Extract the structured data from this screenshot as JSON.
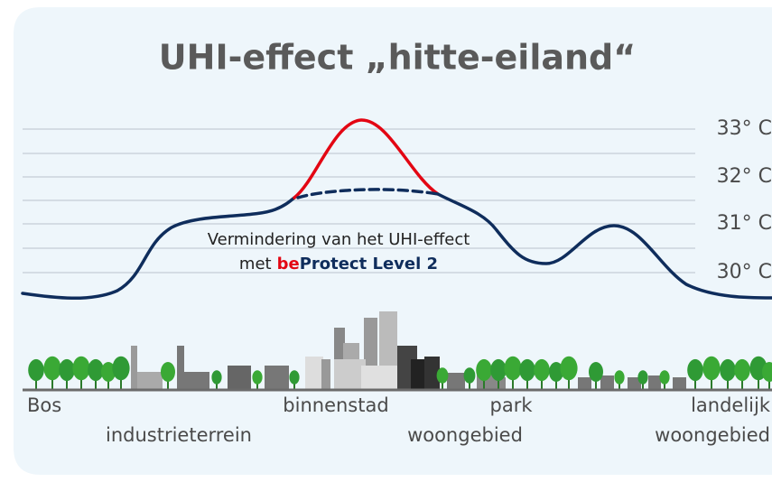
{
  "header": {
    "title": "UHI-effect „hitte-eiland“"
  },
  "temperature_labels": [
    "33° C",
    "32° C",
    "31° C",
    "30° C"
  ],
  "annotation": {
    "line1": "Vermindering van het UHI-effect",
    "line2_prefix": "met",
    "brand_be": "be",
    "brand_rest": "Protect Level 2"
  },
  "areas": {
    "bos": "Bos",
    "industrie": "industrieterrein",
    "binnenstad": "binnenstad",
    "park": "park",
    "woongebied": "woongebied",
    "landelijk_1": "landelijk",
    "landelijk_2": "woongebied"
  }
}
